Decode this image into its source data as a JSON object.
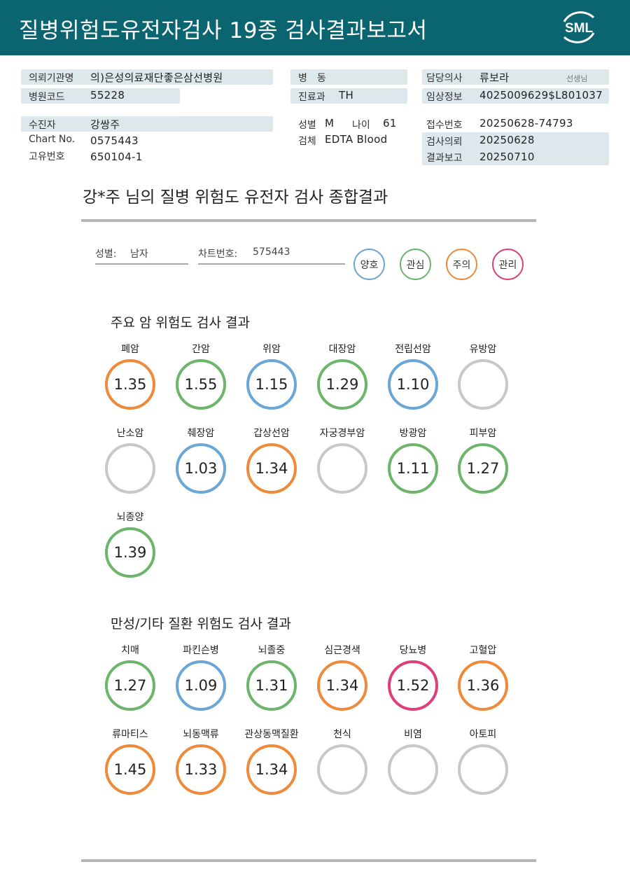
{
  "header": {
    "title": "질병위험도유전자검사 19종 검사결과보고서",
    "logo_text": "SML"
  },
  "info": {
    "hospital_label": "의뢰기관명",
    "hospital": "의)은성의료재단좋은삼선병원",
    "hospital_code_label": "병원코드",
    "hospital_code": "55228",
    "patient_label": "수진자",
    "patient": "강쌍주",
    "chart_label": "Chart No.",
    "chart": "0575443",
    "id_label": "고유번호",
    "id": "650104-1",
    "ward_label": "병　동",
    "ward": "",
    "dept_label": "진료과",
    "dept": "TH",
    "sex_label": "성별",
    "sex": "M",
    "age_label": "나이",
    "age": "61",
    "specimen_label": "검체",
    "specimen": "EDTA Blood",
    "doctor_label": "담당의사",
    "doctor": "류보라",
    "doctor_suffix": "선생님",
    "clinical_label": "임상정보",
    "clinical": "4025009629$L801037",
    "receipt_label": "접수번호",
    "receipt": "20250628-74793",
    "request_label": "검사의뢰",
    "request": "20250628",
    "report_label": "결과보고",
    "report": "20250710"
  },
  "summary": {
    "title": "강*주 님의 질병 위험도 유전자 검사 종합결과",
    "sex_label": "성별:",
    "sex": "남자",
    "chart_label": "차트번호:",
    "chart": "575443"
  },
  "legend": [
    {
      "label": "양호",
      "color": "#6aa6d6"
    },
    {
      "label": "관심",
      "color": "#6cb56a"
    },
    {
      "label": "주의",
      "color": "#ee8a3a"
    },
    {
      "label": "관리",
      "color": "#de3f7a"
    }
  ],
  "cancer": {
    "title": "주요 암 위험도 검사 결과",
    "items": [
      {
        "name": "폐암",
        "value": "1.35",
        "status": "주의"
      },
      {
        "name": "간암",
        "value": "1.55",
        "status": "관심"
      },
      {
        "name": "위암",
        "value": "1.15",
        "status": "양호"
      },
      {
        "name": "대장암",
        "value": "1.29",
        "status": "관심"
      },
      {
        "name": "전립선암",
        "value": "1.10",
        "status": "양호"
      },
      {
        "name": "유방암",
        "value": "",
        "status": ""
      },
      {
        "name": "난소암",
        "value": "",
        "status": ""
      },
      {
        "name": "췌장암",
        "value": "1.03",
        "status": "양호"
      },
      {
        "name": "갑상선암",
        "value": "1.34",
        "status": "주의"
      },
      {
        "name": "자궁경부암",
        "value": "",
        "status": ""
      },
      {
        "name": "방광암",
        "value": "1.11",
        "status": "관심"
      },
      {
        "name": "피부암",
        "value": "1.27",
        "status": "관심"
      },
      {
        "name": "뇌종양",
        "value": "1.39",
        "status": "관심"
      }
    ]
  },
  "chronic": {
    "title": "만성/기타 질환 위험도 검사 결과",
    "items": [
      {
        "name": "치매",
        "value": "1.27",
        "status": "관심"
      },
      {
        "name": "파킨슨병",
        "value": "1.09",
        "status": "양호"
      },
      {
        "name": "뇌졸중",
        "value": "1.31",
        "status": "관심"
      },
      {
        "name": "심근경색",
        "value": "1.34",
        "status": "주의"
      },
      {
        "name": "당뇨병",
        "value": "1.52",
        "status": "관리"
      },
      {
        "name": "고혈압",
        "value": "1.36",
        "status": "주의"
      },
      {
        "name": "류마티스",
        "value": "1.45",
        "status": "주의"
      },
      {
        "name": "뇌동맥류",
        "value": "1.33",
        "status": "주의"
      },
      {
        "name": "관상동맥질환",
        "value": "1.34",
        "status": "주의"
      },
      {
        "name": "천식",
        "value": "",
        "status": ""
      },
      {
        "name": "비염",
        "value": "",
        "status": ""
      },
      {
        "name": "아토피",
        "value": "",
        "status": ""
      }
    ]
  },
  "colors": {
    "header": "#0b6570",
    "empty": "#c8c8c8",
    "info_bg": "#dde8ed"
  }
}
